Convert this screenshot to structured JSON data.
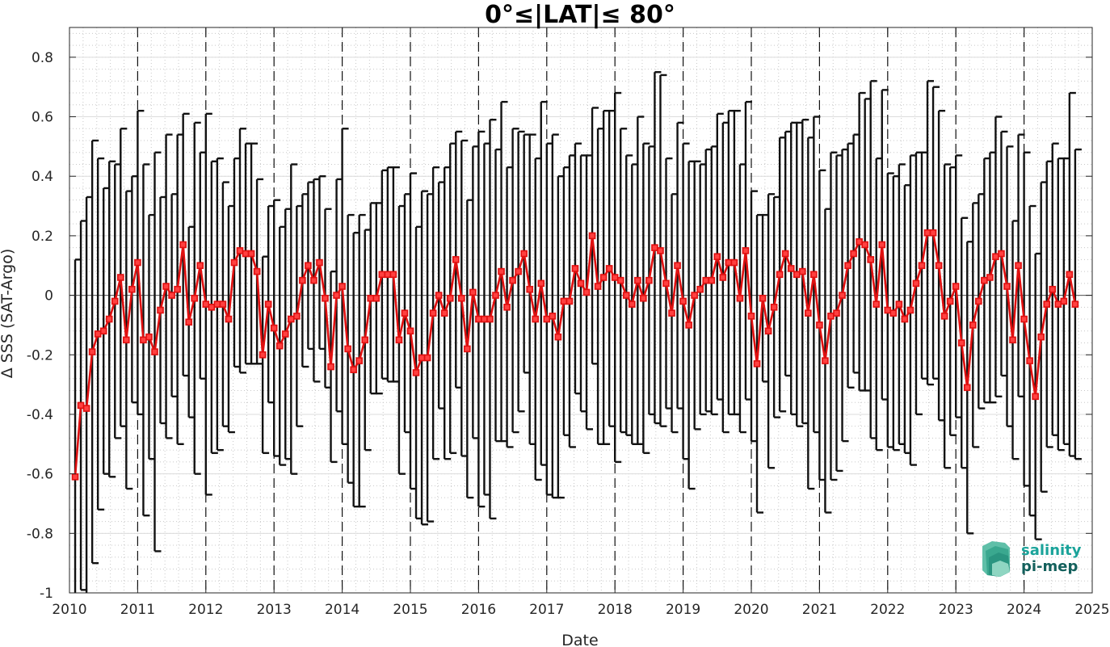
{
  "chart_data": {
    "type": "line",
    "title": "0°≤|LAT|≤ 80°",
    "xlabel": "Date",
    "ylabel": "Δ SSS (SAT-Argo)",
    "xlim": [
      2010,
      2025
    ],
    "ylim": [
      -1,
      0.9
    ],
    "xticks": [
      "2010",
      "2011",
      "2012",
      "2013",
      "2014",
      "2015",
      "2016",
      "2017",
      "2018",
      "2019",
      "2020",
      "2021",
      "2022",
      "2023",
      "2024",
      "2025"
    ],
    "yticks": [
      "-1",
      "-0.8",
      "-0.6",
      "-0.4",
      "-0.2",
      "0",
      "0.2",
      "0.4",
      "0.6",
      "0.8"
    ],
    "grid": "minor dotted",
    "year_divider_lines": "dashed",
    "series": [
      {
        "marker": "square",
        "color": "#e01010",
        "errorbar_color": "#111111",
        "x": [
          "2010-02",
          "2010-03",
          "2010-04",
          "2010-05",
          "2010-06",
          "2010-07",
          "2010-08",
          "2010-09",
          "2010-10",
          "2010-11",
          "2010-12",
          "2011-01",
          "2011-02",
          "2011-03",
          "2011-04",
          "2011-05",
          "2011-06",
          "2011-07",
          "2011-08",
          "2011-09",
          "2011-10",
          "2011-11",
          "2011-12",
          "2012-01",
          "2012-02",
          "2012-03",
          "2012-04",
          "2012-05",
          "2012-06",
          "2012-07",
          "2012-08",
          "2012-09",
          "2012-10",
          "2012-11",
          "2012-12",
          "2013-01",
          "2013-02",
          "2013-03",
          "2013-04",
          "2013-05",
          "2013-06",
          "2013-07",
          "2013-08",
          "2013-09",
          "2013-10",
          "2013-11",
          "2013-12",
          "2014-01",
          "2014-02",
          "2014-03",
          "2014-04",
          "2014-05",
          "2014-06",
          "2014-07",
          "2014-08",
          "2014-09",
          "2014-10",
          "2014-11",
          "2014-12",
          "2015-01",
          "2015-02",
          "2015-03",
          "2015-04",
          "2015-05",
          "2015-06",
          "2015-07",
          "2015-08",
          "2015-09",
          "2015-10",
          "2015-11",
          "2015-12",
          "2016-01",
          "2016-02",
          "2016-03",
          "2016-04",
          "2016-05",
          "2016-06",
          "2016-07",
          "2016-08",
          "2016-09",
          "2016-10",
          "2016-11",
          "2016-12",
          "2017-01",
          "2017-02",
          "2017-03",
          "2017-04",
          "2017-05",
          "2017-06",
          "2017-07",
          "2017-08",
          "2017-09",
          "2017-10",
          "2017-11",
          "2017-12",
          "2018-01",
          "2018-02",
          "2018-03",
          "2018-04",
          "2018-05",
          "2018-06",
          "2018-07",
          "2018-08",
          "2018-09",
          "2018-10",
          "2018-11",
          "2018-12",
          "2019-01",
          "2019-02",
          "2019-03",
          "2019-04",
          "2019-05",
          "2019-06",
          "2019-07",
          "2019-08",
          "2019-09",
          "2019-10",
          "2019-11",
          "2019-12",
          "2020-01",
          "2020-02",
          "2020-03",
          "2020-04",
          "2020-05",
          "2020-06",
          "2020-07",
          "2020-08",
          "2020-09",
          "2020-10",
          "2020-11",
          "2020-12",
          "2021-01",
          "2021-02",
          "2021-03",
          "2021-04",
          "2021-05",
          "2021-06",
          "2021-07",
          "2021-08",
          "2021-09",
          "2021-10",
          "2021-11",
          "2021-12",
          "2022-01",
          "2022-02",
          "2022-03",
          "2022-04",
          "2022-05",
          "2022-06",
          "2022-07",
          "2022-08",
          "2022-09",
          "2022-10",
          "2022-11",
          "2022-12",
          "2023-01",
          "2023-02",
          "2023-03",
          "2023-04",
          "2023-05",
          "2023-06",
          "2023-07",
          "2023-08",
          "2023-09",
          "2023-10",
          "2023-11",
          "2023-12",
          "2024-01",
          "2024-02",
          "2024-03",
          "2024-04",
          "2024-05",
          "2024-06",
          "2024-07",
          "2024-08",
          "2024-09",
          "2024-10"
        ],
        "y": [
          -0.61,
          -0.37,
          -0.38,
          -0.19,
          -0.13,
          -0.12,
          -0.08,
          -0.02,
          0.06,
          -0.15,
          0.02,
          0.11,
          -0.15,
          -0.14,
          -0.19,
          -0.05,
          0.03,
          0.0,
          0.02,
          0.17,
          -0.09,
          -0.01,
          0.1,
          -0.03,
          -0.04,
          -0.03,
          -0.03,
          -0.08,
          0.11,
          0.15,
          0.14,
          0.14,
          0.08,
          -0.2,
          -0.03,
          -0.11,
          -0.17,
          -0.13,
          -0.08,
          -0.07,
          0.05,
          0.1,
          0.05,
          0.11,
          -0.01,
          -0.24,
          0.0,
          0.03,
          -0.18,
          -0.25,
          -0.22,
          -0.15,
          -0.01,
          -0.01,
          0.07,
          0.07,
          0.07,
          -0.15,
          -0.06,
          -0.12,
          -0.26,
          -0.21,
          -0.21,
          -0.06,
          0.0,
          -0.06,
          -0.01,
          0.12,
          -0.01,
          -0.18,
          0.01,
          -0.08,
          -0.08,
          -0.08,
          0.0,
          0.08,
          -0.04,
          0.05,
          0.08,
          0.14,
          0.02,
          -0.08,
          0.04,
          -0.08,
          -0.07,
          -0.14,
          -0.02,
          -0.02,
          0.09,
          0.04,
          0.01,
          0.2,
          0.03,
          0.06,
          0.09,
          0.06,
          0.05,
          0.0,
          -0.03,
          0.05,
          -0.01,
          0.05,
          0.16,
          0.15,
          0.04,
          -0.06,
          0.1,
          -0.02,
          -0.1,
          0.0,
          0.02,
          0.05,
          0.05,
          0.13,
          0.06,
          0.11,
          0.11,
          -0.01,
          0.15,
          -0.07,
          -0.23,
          -0.01,
          -0.12,
          -0.04,
          0.07,
          0.14,
          0.09,
          0.07,
          0.08,
          -0.06,
          0.07,
          -0.1,
          -0.22,
          -0.07,
          -0.06,
          0.0,
          0.1,
          0.14,
          0.18,
          0.17,
          0.12,
          -0.03,
          0.17,
          -0.05,
          -0.06,
          -0.03,
          -0.08,
          -0.05,
          0.04,
          0.1,
          0.21,
          0.21,
          0.1,
          -0.07,
          -0.02,
          0.03,
          -0.16,
          -0.31,
          -0.1,
          -0.02,
          0.05,
          0.06,
          0.13,
          0.14,
          0.03,
          -0.15,
          0.1,
          -0.08,
          -0.22,
          -0.34,
          -0.14,
          -0.03,
          0.02,
          -0.03,
          -0.02,
          0.07,
          -0.03
        ],
        "err": [
          0.73,
          0.62,
          0.71,
          0.71,
          0.59,
          0.48,
          0.53,
          0.46,
          0.5,
          0.5,
          0.38,
          0.51,
          0.59,
          0.41,
          0.67,
          0.38,
          0.51,
          0.34,
          0.52,
          0.44,
          0.32,
          0.59,
          0.38,
          0.64,
          0.49,
          0.49,
          0.41,
          0.38,
          0.35,
          0.41,
          0.37,
          0.37,
          0.31,
          0.33,
          0.33,
          0.43,
          0.4,
          0.42,
          0.52,
          0.37,
          0.29,
          0.28,
          0.34,
          0.29,
          0.3,
          0.32,
          0.39,
          0.53,
          0.45,
          0.46,
          0.49,
          0.37,
          0.32,
          0.32,
          0.35,
          0.36,
          0.36,
          0.45,
          0.4,
          0.53,
          0.49,
          0.56,
          0.55,
          0.49,
          0.38,
          0.49,
          0.52,
          0.43,
          0.53,
          0.5,
          0.49,
          0.63,
          0.59,
          0.67,
          0.49,
          0.57,
          0.47,
          0.51,
          0.47,
          0.4,
          0.52,
          0.54,
          0.61,
          0.59,
          0.61,
          0.54,
          0.45,
          0.49,
          0.42,
          0.43,
          0.46,
          0.43,
          0.53,
          0.56,
          0.53,
          0.62,
          0.51,
          0.47,
          0.47,
          0.55,
          0.52,
          0.45,
          0.59,
          0.59,
          0.42,
          0.4,
          0.48,
          0.53,
          0.55,
          0.45,
          0.42,
          0.44,
          0.45,
          0.48,
          0.52,
          0.51,
          0.51,
          0.45,
          0.5,
          0.42,
          0.5,
          0.28,
          0.46,
          0.37,
          0.46,
          0.41,
          0.49,
          0.51,
          0.51,
          0.59,
          0.53,
          0.52,
          0.51,
          0.55,
          0.53,
          0.49,
          0.41,
          0.4,
          0.5,
          0.49,
          0.6,
          0.49,
          0.52,
          0.46,
          0.46,
          0.47,
          0.45,
          0.52,
          0.44,
          0.38,
          0.51,
          0.49,
          0.52,
          0.51,
          0.45,
          0.44,
          0.42,
          0.49,
          0.41,
          0.36,
          0.41,
          0.42,
          0.47,
          0.41,
          0.47,
          0.4,
          0.44,
          0.56,
          0.52,
          0.48,
          0.52,
          0.48,
          0.49,
          0.49,
          0.48,
          0.61,
          0.52
        ]
      }
    ]
  },
  "logo": {
    "line1": "salinity",
    "line2": "pi-mep"
  }
}
